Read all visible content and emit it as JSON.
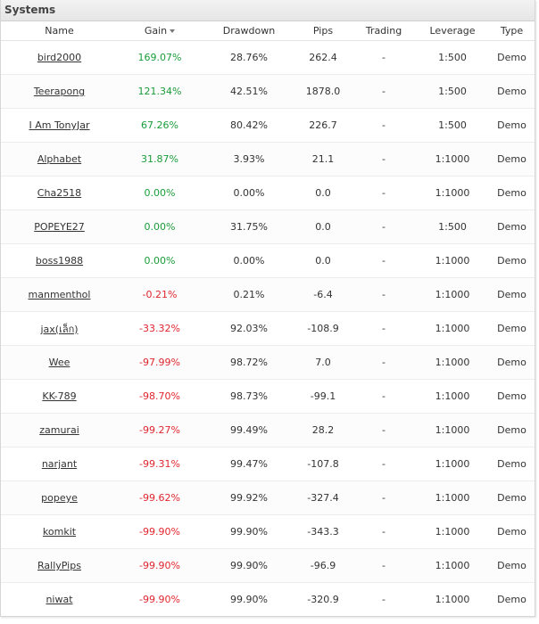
{
  "panel": {
    "title": "Systems"
  },
  "columns": {
    "name": "Name",
    "gain": "Gain",
    "drawdown": "Drawdown",
    "pips": "Pips",
    "trading": "Trading",
    "leverage": "Leverage",
    "type": "Type"
  },
  "colors": {
    "gain_positive": "#1a9c3a",
    "gain_negative": "#e0262f"
  },
  "rows": [
    {
      "name": "bird2000",
      "gain": "169.07%",
      "drawdown": "28.76%",
      "pips": "262.4",
      "trading": "-",
      "leverage": "1:500",
      "type": "Demo"
    },
    {
      "name": "Teerapong",
      "gain": "121.34%",
      "drawdown": "42.51%",
      "pips": "1878.0",
      "trading": "-",
      "leverage": "1:500",
      "type": "Demo"
    },
    {
      "name": "I Am TonyJar",
      "gain": "67.26%",
      "drawdown": "80.42%",
      "pips": "226.7",
      "trading": "-",
      "leverage": "1:500",
      "type": "Demo"
    },
    {
      "name": "Alphabet",
      "gain": "31.87%",
      "drawdown": "3.93%",
      "pips": "21.1",
      "trading": "-",
      "leverage": "1:1000",
      "type": "Demo"
    },
    {
      "name": "Cha2518",
      "gain": "0.00%",
      "drawdown": "0.00%",
      "pips": "0.0",
      "trading": "-",
      "leverage": "1:1000",
      "type": "Demo"
    },
    {
      "name": "POPEYE27",
      "gain": "0.00%",
      "drawdown": "31.75%",
      "pips": "0.0",
      "trading": "-",
      "leverage": "1:500",
      "type": "Demo"
    },
    {
      "name": "boss1988",
      "gain": "0.00%",
      "drawdown": "0.00%",
      "pips": "0.0",
      "trading": "-",
      "leverage": "1:1000",
      "type": "Demo"
    },
    {
      "name": "manmenthol",
      "gain": "-0.21%",
      "drawdown": "0.21%",
      "pips": "-6.4",
      "trading": "-",
      "leverage": "1:1000",
      "type": "Demo"
    },
    {
      "name": "jax(เล็ก)",
      "gain": "-33.32%",
      "drawdown": "92.03%",
      "pips": "-108.9",
      "trading": "-",
      "leverage": "1:1000",
      "type": "Demo"
    },
    {
      "name": "Wee",
      "gain": "-97.99%",
      "drawdown": "98.72%",
      "pips": "7.0",
      "trading": "-",
      "leverage": "1:1000",
      "type": "Demo"
    },
    {
      "name": "KK-789",
      "gain": "-98.70%",
      "drawdown": "98.73%",
      "pips": "-99.1",
      "trading": "-",
      "leverage": "1:1000",
      "type": "Demo"
    },
    {
      "name": "zamurai",
      "gain": "-99.27%",
      "drawdown": "99.49%",
      "pips": "28.2",
      "trading": "-",
      "leverage": "1:1000",
      "type": "Demo"
    },
    {
      "name": "narjant",
      "gain": "-99.31%",
      "drawdown": "99.47%",
      "pips": "-107.8",
      "trading": "-",
      "leverage": "1:1000",
      "type": "Demo"
    },
    {
      "name": "popeye",
      "gain": "-99.62%",
      "drawdown": "99.92%",
      "pips": "-327.4",
      "trading": "-",
      "leverage": "1:1000",
      "type": "Demo"
    },
    {
      "name": "komkit",
      "gain": "-99.90%",
      "drawdown": "99.90%",
      "pips": "-343.3",
      "trading": "-",
      "leverage": "1:1000",
      "type": "Demo"
    },
    {
      "name": "RallyPips",
      "gain": "-99.90%",
      "drawdown": "99.90%",
      "pips": "-96.9",
      "trading": "-",
      "leverage": "1:1000",
      "type": "Demo"
    },
    {
      "name": "niwat",
      "gain": "-99.90%",
      "drawdown": "99.90%",
      "pips": "-320.9",
      "trading": "-",
      "leverage": "1:1000",
      "type": "Demo"
    }
  ]
}
